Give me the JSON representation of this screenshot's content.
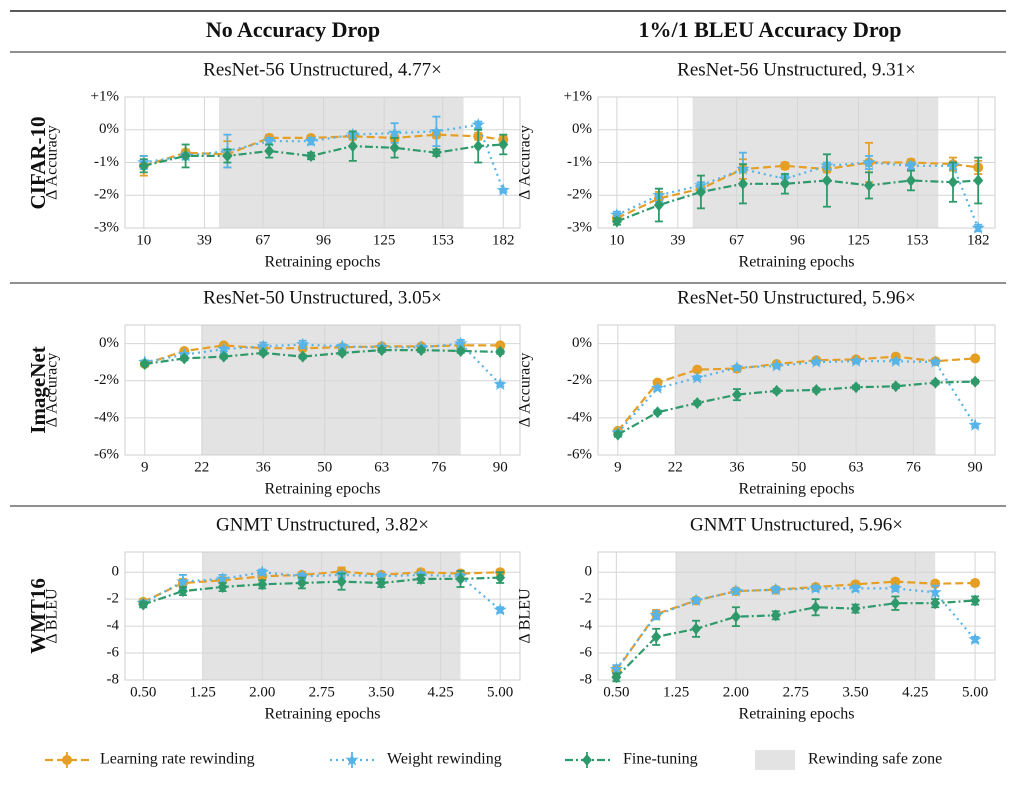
{
  "header": {
    "columns": [
      "No Accuracy Drop",
      "1%/1 BLEU Accuracy Drop"
    ]
  },
  "rows": [
    "CIFAR-10",
    "ImageNet",
    "WMT16"
  ],
  "legend": {
    "shade_label": "Rewinding safe zone"
  },
  "chart_data": [
    {
      "type": "line",
      "title": "ResNet-56 Unstructured, 4.77×",
      "xlabel": "Retraining epochs",
      "ylabel": "Δ Accuracy",
      "x": [
        10,
        30,
        50,
        70,
        90,
        110,
        130,
        150,
        170,
        182
      ],
      "xlim": [
        1,
        190
      ],
      "xticks": [
        10,
        39,
        67,
        96,
        125,
        153,
        182
      ],
      "ylim": [
        -3,
        1
      ],
      "yticks": [
        {
          "value": 1,
          "label": "+1%"
        },
        {
          "value": 0,
          "label": "0%"
        },
        {
          "value": -1,
          "label": "-1%"
        },
        {
          "value": -2,
          "label": "-2%"
        },
        {
          "value": -3,
          "label": "-3%"
        }
      ],
      "shade": [
        46,
        163
      ],
      "grid": true,
      "series": [
        {
          "name": "Learning rate rewinding",
          "color": "#E69F25",
          "marker": "circle",
          "linestyle": "dashed",
          "values": [
            -1.1,
            -0.7,
            -0.75,
            -0.25,
            -0.25,
            -0.2,
            -0.25,
            -0.15,
            -0.2,
            -0.3
          ],
          "errors": [
            0.3,
            0.1,
            0.4,
            0.1,
            0.05,
            0.1,
            0.1,
            0.1,
            0.1,
            0.1
          ]
        },
        {
          "name": "Weight rewinding",
          "color": "#56B4E9",
          "marker": "star",
          "linestyle": "dotted",
          "values": [
            -1.0,
            -0.8,
            -0.65,
            -0.35,
            -0.35,
            -0.15,
            -0.1,
            -0.05,
            0.15,
            -1.85
          ],
          "errors": [
            0.2,
            0.1,
            0.5,
            0.1,
            0.1,
            0.1,
            0.3,
            0.45,
            0.1,
            0.05
          ]
        },
        {
          "name": "Fine-tuning",
          "color": "#2E9A6B",
          "marker": "diamond",
          "linestyle": "dashdot",
          "values": [
            -1.1,
            -0.8,
            -0.8,
            -0.65,
            -0.8,
            -0.5,
            -0.55,
            -0.7,
            -0.5,
            -0.45
          ],
          "errors": [
            0.2,
            0.35,
            0.2,
            0.2,
            0.1,
            0.45,
            0.3,
            0.1,
            0.5,
            0.3
          ]
        }
      ]
    },
    {
      "type": "line",
      "title": "ResNet-56 Unstructured, 9.31×",
      "xlabel": "Retraining epochs",
      "ylabel": "Δ Accuracy",
      "x": [
        10,
        30,
        50,
        70,
        90,
        110,
        130,
        150,
        170,
        182
      ],
      "xlim": [
        1,
        190
      ],
      "xticks": [
        10,
        39,
        67,
        96,
        125,
        153,
        182
      ],
      "ylim": [
        -3,
        1
      ],
      "yticks": [
        {
          "value": 1,
          "label": "+1%"
        },
        {
          "value": 0,
          "label": "0%"
        },
        {
          "value": -1,
          "label": "-1%"
        },
        {
          "value": -2,
          "label": "-2%"
        },
        {
          "value": -3,
          "label": "-3%"
        }
      ],
      "shade": [
        46,
        163
      ],
      "grid": true,
      "series": [
        {
          "name": "Learning rate rewinding",
          "color": "#E69F25",
          "marker": "circle",
          "linestyle": "dashed",
          "values": [
            -2.7,
            -2.1,
            -1.8,
            -1.2,
            -1.1,
            -1.2,
            -1.0,
            -1.0,
            -1.05,
            -1.15
          ],
          "errors": [
            0.1,
            0.2,
            0.1,
            0.3,
            0.1,
            0.1,
            0.6,
            0.1,
            0.2,
            0.2
          ]
        },
        {
          "name": "Weight rewinding",
          "color": "#56B4E9",
          "marker": "star",
          "linestyle": "dotted",
          "values": [
            -2.6,
            -2.0,
            -1.7,
            -1.2,
            -1.5,
            -1.1,
            -1.0,
            -1.1,
            -1.1,
            -3.0
          ],
          "errors": [
            0.1,
            0.2,
            0.1,
            0.5,
            0.1,
            0.1,
            0.2,
            0.1,
            0.1,
            0.1
          ]
        },
        {
          "name": "Fine-tuning",
          "color": "#2E9A6B",
          "marker": "diamond",
          "linestyle": "dashdot",
          "values": [
            -2.8,
            -2.3,
            -1.9,
            -1.65,
            -1.65,
            -1.55,
            -1.7,
            -1.55,
            -1.6,
            -1.55
          ],
          "errors": [
            0.1,
            0.5,
            0.5,
            0.6,
            0.3,
            0.8,
            0.4,
            0.3,
            0.6,
            0.7
          ]
        }
      ]
    },
    {
      "type": "line",
      "title": "ResNet-50 Unstructured, 3.05×",
      "xlabel": "Retraining epochs",
      "ylabel": "Δ Accuracy",
      "x": [
        9,
        18,
        27,
        36,
        45,
        54,
        63,
        72,
        81,
        90
      ],
      "xlim": [
        4.5,
        94.5
      ],
      "xticks": [
        9,
        22,
        36,
        50,
        63,
        76,
        90
      ],
      "ylim": [
        -6,
        1
      ],
      "yticks": [
        {
          "value": 0,
          "label": "0%"
        },
        {
          "value": -2,
          "label": "-2%"
        },
        {
          "value": -4,
          "label": "-4%"
        },
        {
          "value": -6,
          "label": "-6%"
        }
      ],
      "shade": [
        22,
        81
      ],
      "grid": true,
      "series": [
        {
          "name": "Learning rate rewinding",
          "color": "#E69F25",
          "marker": "circle",
          "linestyle": "dashed",
          "values": [
            -1.1,
            -0.4,
            -0.1,
            -0.25,
            -0.25,
            -0.2,
            -0.15,
            -0.15,
            -0.1,
            -0.1
          ],
          "errors": [
            0.1,
            0.1,
            0.1,
            0.1,
            0.1,
            0.1,
            0.1,
            0.1,
            0.1,
            0.1
          ]
        },
        {
          "name": "Weight rewinding",
          "color": "#56B4E9",
          "marker": "star",
          "linestyle": "dotted",
          "values": [
            -1.0,
            -0.6,
            -0.3,
            -0.15,
            -0.05,
            -0.15,
            -0.2,
            -0.2,
            0.0,
            -2.2
          ],
          "errors": [
            0.1,
            0.1,
            0.1,
            0.2,
            0.2,
            0.1,
            0.1,
            0.1,
            0.2,
            0.1
          ]
        },
        {
          "name": "Fine-tuning",
          "color": "#2E9A6B",
          "marker": "diamond",
          "linestyle": "dashdot",
          "values": [
            -1.1,
            -0.8,
            -0.7,
            -0.5,
            -0.7,
            -0.5,
            -0.35,
            -0.35,
            -0.4,
            -0.45
          ],
          "errors": [
            0.1,
            0.1,
            0.1,
            0.1,
            0.1,
            0.1,
            0.1,
            0.1,
            0.1,
            0.1
          ]
        }
      ]
    },
    {
      "type": "line",
      "title": "ResNet-50 Unstructured, 5.96×",
      "xlabel": "Retraining epochs",
      "ylabel": "Δ Accuracy",
      "x": [
        9,
        18,
        27,
        36,
        45,
        54,
        63,
        72,
        81,
        90
      ],
      "xlim": [
        4.5,
        94.5
      ],
      "xticks": [
        9,
        22,
        36,
        50,
        63,
        76,
        90
      ],
      "ylim": [
        -6,
        1
      ],
      "yticks": [
        {
          "value": 0,
          "label": "0%"
        },
        {
          "value": -2,
          "label": "-2%"
        },
        {
          "value": -4,
          "label": "-4%"
        },
        {
          "value": -6,
          "label": "-6%"
        }
      ],
      "shade": [
        22,
        81
      ],
      "grid": true,
      "series": [
        {
          "name": "Learning rate rewinding",
          "color": "#E69F25",
          "marker": "circle",
          "linestyle": "dashed",
          "values": [
            -4.7,
            -2.1,
            -1.4,
            -1.35,
            -1.1,
            -0.9,
            -0.85,
            -0.7,
            -0.95,
            -0.8
          ],
          "errors": [
            0.1,
            0.1,
            0.1,
            0.1,
            0.1,
            0.1,
            0.1,
            0.1,
            0.1,
            0.1
          ]
        },
        {
          "name": "Weight rewinding",
          "color": "#56B4E9",
          "marker": "star",
          "linestyle": "dotted",
          "values": [
            -4.8,
            -2.4,
            -1.85,
            -1.3,
            -1.2,
            -1.0,
            -0.95,
            -0.95,
            -1.0,
            -4.4
          ],
          "errors": [
            0.1,
            0.1,
            0.1,
            0.1,
            0.1,
            0.1,
            0.1,
            0.1,
            0.1,
            0.1
          ]
        },
        {
          "name": "Fine-tuning",
          "color": "#2E9A6B",
          "marker": "diamond",
          "linestyle": "dashdot",
          "values": [
            -4.9,
            -3.7,
            -3.2,
            -2.75,
            -2.55,
            -2.5,
            -2.35,
            -2.3,
            -2.1,
            -2.05
          ],
          "errors": [
            0.1,
            0.1,
            0.1,
            0.3,
            0.1,
            0.1,
            0.1,
            0.1,
            0.1,
            0.1
          ]
        }
      ]
    },
    {
      "type": "line",
      "title": "GNMT Unstructured, 3.82×",
      "xlabel": "Retraining epochs",
      "ylabel": "Δ BLEU",
      "x": [
        0.5,
        1.0,
        1.5,
        2.0,
        2.5,
        3.0,
        3.5,
        4.0,
        4.5,
        5.0
      ],
      "xlim": [
        0.27,
        5.25
      ],
      "xticks": [
        {
          "value": 0.5,
          "label": "0.50"
        },
        1.25,
        {
          "value": 2,
          "label": "2.00"
        },
        2.75,
        {
          "value": 3.5,
          "label": "3.50"
        },
        4.25,
        {
          "value": 5,
          "label": "5.00"
        }
      ],
      "ylim": [
        -8,
        1.5
      ],
      "yticks": [
        0,
        -2,
        -4,
        -6,
        -8
      ],
      "shade": [
        1.25,
        4.5
      ],
      "grid": true,
      "series": [
        {
          "name": "Learning rate rewinding",
          "color": "#E69F25",
          "marker": "circle",
          "linestyle": "dashed",
          "values": [
            -2.2,
            -0.8,
            -0.6,
            -0.3,
            -0.2,
            0.05,
            -0.2,
            0.0,
            -0.1,
            0.0
          ],
          "errors": [
            0.2,
            0.3,
            0.2,
            0.2,
            0.2,
            0.3,
            0.2,
            0.2,
            0.2,
            0.2
          ]
        },
        {
          "name": "Weight rewinding",
          "color": "#56B4E9",
          "marker": "star",
          "linestyle": "dotted",
          "values": [
            -2.3,
            -0.7,
            -0.5,
            0.0,
            -0.3,
            -0.2,
            -0.3,
            -0.2,
            -0.3,
            -2.8
          ],
          "errors": [
            0.2,
            0.5,
            0.3,
            0.2,
            0.2,
            0.2,
            0.2,
            0.2,
            0.2,
            0.2
          ]
        },
        {
          "name": "Fine-tuning",
          "color": "#2E9A6B",
          "marker": "diamond",
          "linestyle": "dashdot",
          "values": [
            -2.4,
            -1.4,
            -1.1,
            -0.9,
            -0.8,
            -0.7,
            -0.8,
            -0.5,
            -0.5,
            -0.4
          ],
          "errors": [
            0.2,
            0.3,
            0.3,
            0.3,
            0.4,
            0.6,
            0.3,
            0.3,
            0.6,
            0.4
          ]
        }
      ]
    },
    {
      "type": "line",
      "title": "GNMT Unstructured, 5.96×",
      "xlabel": "Retraining epochs",
      "ylabel": "Δ BLEU",
      "x": [
        0.5,
        1.0,
        1.5,
        2.0,
        2.5,
        3.0,
        3.5,
        4.0,
        4.5,
        5.0
      ],
      "xlim": [
        0.27,
        5.25
      ],
      "xticks": [
        {
          "value": 0.5,
          "label": "0.50"
        },
        1.25,
        {
          "value": 2,
          "label": "2.00"
        },
        2.75,
        {
          "value": 3.5,
          "label": "3.50"
        },
        4.25,
        {
          "value": 5,
          "label": "5.00"
        }
      ],
      "ylim": [
        -8,
        1.5
      ],
      "yticks": [
        0,
        -2,
        -4,
        -6,
        -8
      ],
      "shade": [
        1.25,
        4.5
      ],
      "grid": true,
      "series": [
        {
          "name": "Learning rate rewinding",
          "color": "#E69F25",
          "marker": "circle",
          "linestyle": "dashed",
          "values": [
            -7.3,
            -3.1,
            -2.1,
            -1.4,
            -1.3,
            -1.1,
            -0.9,
            -0.7,
            -0.85,
            -0.8
          ],
          "errors": [
            0.3,
            0.3,
            0.2,
            0.2,
            0.2,
            0.2,
            0.2,
            0.2,
            0.2,
            0.2
          ]
        },
        {
          "name": "Weight rewinding",
          "color": "#56B4E9",
          "marker": "star",
          "linestyle": "dotted",
          "values": [
            -7.2,
            -3.2,
            -2.1,
            -1.4,
            -1.3,
            -1.2,
            -1.2,
            -1.2,
            -1.5,
            -5.0
          ],
          "errors": [
            0.3,
            0.3,
            0.2,
            0.2,
            0.2,
            0.2,
            0.2,
            0.2,
            0.5,
            0.2
          ]
        },
        {
          "name": "Fine-tuning",
          "color": "#2E9A6B",
          "marker": "diamond",
          "linestyle": "dashdot",
          "values": [
            -7.8,
            -4.8,
            -4.2,
            -3.3,
            -3.2,
            -2.6,
            -2.7,
            -2.3,
            -2.3,
            -2.1
          ],
          "errors": [
            0.3,
            0.6,
            0.6,
            0.7,
            0.3,
            0.6,
            0.3,
            0.5,
            0.3,
            0.3
          ]
        }
      ]
    }
  ]
}
